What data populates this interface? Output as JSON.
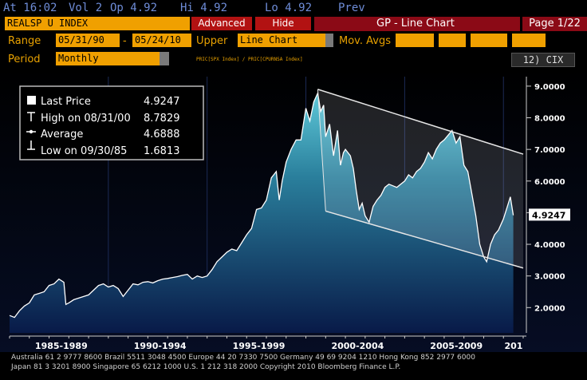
{
  "topbar": {
    "at": "At 16:02",
    "vol": "Vol 2",
    "op": "Op 4.92",
    "hi": "Hi 4.92",
    "lo": "Lo 4.92",
    "prev": "Prev"
  },
  "row1": {
    "ticker": "REALSP U INDEX",
    "advanced": "Advanced",
    "hide": "Hide",
    "title": "GP - Line Chart",
    "page": "Page 1/22"
  },
  "row2": {
    "range_label": "Range",
    "start_date": "05/31/90",
    "dash": "-",
    "end_date": "05/24/10",
    "upper_label": "Upper",
    "upper_value": "Line Chart",
    "mov_label": "Mov. Avgs"
  },
  "row3": {
    "period_label": "Period",
    "period_value": "Monthly",
    "formula": "PRIC[SPX Index] /   PRIC[CPURNSA Index]",
    "cix_button": "12) CIX"
  },
  "legend": {
    "rows": [
      {
        "label": "Last Price",
        "value": "4.9247",
        "icon": "square-icon"
      },
      {
        "label": "High on 08/31/00",
        "value": "8.7829",
        "icon": "high-marker-icon"
      },
      {
        "label": "Average",
        "value": "4.6888",
        "icon": "average-marker-icon"
      },
      {
        "label": "Low on 09/30/85",
        "value": "1.6813",
        "icon": "low-marker-icon"
      }
    ]
  },
  "chart_data": {
    "type": "area",
    "x_labels": [
      "1985-1989",
      "1990-1994",
      "1995-1999",
      "2000-2004",
      "2005-2009",
      "201"
    ],
    "y_ticks": [
      "9.0000",
      "8.0000",
      "7.0000",
      "6.0000",
      "5.0000",
      "4.0000",
      "3.0000",
      "2.0000"
    ],
    "ylim": [
      1.2,
      9.3
    ],
    "xlim": [
      1985.0,
      2011.0
    ],
    "last_price_label": "4.9247",
    "series": [
      {
        "points": [
          [
            1985.0,
            1.75
          ],
          [
            1985.25,
            1.69
          ],
          [
            1985.5,
            1.9
          ],
          [
            1985.75,
            2.05
          ],
          [
            1986.0,
            2.15
          ],
          [
            1986.25,
            2.4
          ],
          [
            1986.5,
            2.45
          ],
          [
            1986.75,
            2.5
          ],
          [
            1987.0,
            2.7
          ],
          [
            1987.25,
            2.75
          ],
          [
            1987.5,
            2.9
          ],
          [
            1987.75,
            2.8
          ],
          [
            1987.85,
            2.1
          ],
          [
            1988.0,
            2.15
          ],
          [
            1988.25,
            2.25
          ],
          [
            1988.5,
            2.3
          ],
          [
            1988.75,
            2.35
          ],
          [
            1989.0,
            2.4
          ],
          [
            1989.25,
            2.55
          ],
          [
            1989.5,
            2.7
          ],
          [
            1989.75,
            2.75
          ],
          [
            1990.0,
            2.65
          ],
          [
            1990.25,
            2.7
          ],
          [
            1990.5,
            2.6
          ],
          [
            1990.75,
            2.35
          ],
          [
            1991.0,
            2.55
          ],
          [
            1991.25,
            2.75
          ],
          [
            1991.5,
            2.72
          ],
          [
            1991.75,
            2.8
          ],
          [
            1992.0,
            2.82
          ],
          [
            1992.25,
            2.78
          ],
          [
            1992.5,
            2.85
          ],
          [
            1992.75,
            2.9
          ],
          [
            1993.0,
            2.92
          ],
          [
            1993.25,
            2.95
          ],
          [
            1993.5,
            2.98
          ],
          [
            1993.75,
            3.02
          ],
          [
            1994.0,
            3.05
          ],
          [
            1994.25,
            2.9
          ],
          [
            1994.5,
            3.0
          ],
          [
            1994.75,
            2.95
          ],
          [
            1995.0,
            3.0
          ],
          [
            1995.25,
            3.2
          ],
          [
            1995.5,
            3.45
          ],
          [
            1995.75,
            3.6
          ],
          [
            1996.0,
            3.75
          ],
          [
            1996.25,
            3.85
          ],
          [
            1996.5,
            3.8
          ],
          [
            1996.75,
            4.05
          ],
          [
            1997.0,
            4.3
          ],
          [
            1997.25,
            4.5
          ],
          [
            1997.5,
            5.1
          ],
          [
            1997.75,
            5.15
          ],
          [
            1998.0,
            5.4
          ],
          [
            1998.25,
            6.1
          ],
          [
            1998.5,
            6.3
          ],
          [
            1998.65,
            5.4
          ],
          [
            1998.8,
            6.0
          ],
          [
            1999.0,
            6.6
          ],
          [
            1999.25,
            7.0
          ],
          [
            1999.5,
            7.3
          ],
          [
            1999.75,
            7.3
          ],
          [
            2000.0,
            8.3
          ],
          [
            2000.2,
            7.9
          ],
          [
            2000.4,
            8.5
          ],
          [
            2000.6,
            8.78
          ],
          [
            2000.75,
            8.2
          ],
          [
            2000.9,
            8.4
          ],
          [
            2001.0,
            7.4
          ],
          [
            2001.2,
            7.8
          ],
          [
            2001.4,
            6.8
          ],
          [
            2001.6,
            7.6
          ],
          [
            2001.75,
            6.5
          ],
          [
            2001.9,
            6.9
          ],
          [
            2002.0,
            7.0
          ],
          [
            2002.25,
            6.8
          ],
          [
            2002.4,
            6.4
          ],
          [
            2002.55,
            5.7
          ],
          [
            2002.7,
            5.1
          ],
          [
            2002.85,
            5.3
          ],
          [
            2003.0,
            4.9
          ],
          [
            2003.2,
            4.7
          ],
          [
            2003.4,
            5.2
          ],
          [
            2003.6,
            5.4
          ],
          [
            2003.8,
            5.55
          ],
          [
            2004.0,
            5.8
          ],
          [
            2004.2,
            5.9
          ],
          [
            2004.4,
            5.85
          ],
          [
            2004.6,
            5.8
          ],
          [
            2004.8,
            5.9
          ],
          [
            2005.0,
            6.0
          ],
          [
            2005.2,
            6.2
          ],
          [
            2005.4,
            6.1
          ],
          [
            2005.6,
            6.3
          ],
          [
            2005.8,
            6.4
          ],
          [
            2006.0,
            6.6
          ],
          [
            2006.2,
            6.9
          ],
          [
            2006.4,
            6.7
          ],
          [
            2006.6,
            7.0
          ],
          [
            2006.8,
            7.2
          ],
          [
            2007.0,
            7.3
          ],
          [
            2007.2,
            7.45
          ],
          [
            2007.4,
            7.6
          ],
          [
            2007.6,
            7.2
          ],
          [
            2007.8,
            7.4
          ],
          [
            2008.0,
            6.5
          ],
          [
            2008.2,
            6.3
          ],
          [
            2008.4,
            5.6
          ],
          [
            2008.6,
            4.9
          ],
          [
            2008.8,
            4.0
          ],
          [
            2009.0,
            3.6
          ],
          [
            2009.15,
            3.45
          ],
          [
            2009.35,
            4.0
          ],
          [
            2009.55,
            4.3
          ],
          [
            2009.75,
            4.45
          ],
          [
            2010.0,
            4.8
          ],
          [
            2010.2,
            5.2
          ],
          [
            2010.35,
            5.5
          ],
          [
            2010.45,
            5.1
          ],
          [
            2010.5,
            4.92
          ]
        ]
      }
    ],
    "channel": {
      "upper": [
        [
          2000.6,
          8.9
        ],
        [
          2011.0,
          6.85
        ]
      ],
      "lower": [
        [
          2001.0,
          5.05
        ],
        [
          2011.0,
          3.25
        ]
      ]
    },
    "average": 4.6888,
    "last": 4.9247
  },
  "footer": {
    "line1": "Australia 61 2 9777 8600 Brazil 5511 3048 4500 Europe 44 20 7330 7500 Germany 49 69 9204 1210 Hong Kong 852 2977 6000",
    "line2": "Japan 81 3 3201 8900         Singapore 65 6212 1000         U.S. 1 212 318 2000              Copyright 2010 Bloomberg Finance L.P."
  },
  "colors": {
    "amber": "#f0a000",
    "blue_text": "#6e8cd7",
    "red_button": "#b21212",
    "dark_red_bar": "#8b0a16",
    "area_top": "#3aa3b8",
    "area_bottom": "#0a1d4a"
  }
}
